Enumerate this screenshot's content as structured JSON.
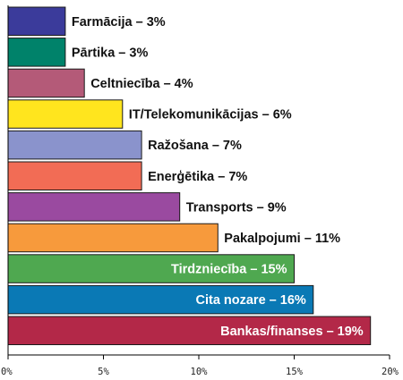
{
  "chart_data": {
    "type": "bar",
    "orientation": "horizontal",
    "xlim": [
      0,
      20
    ],
    "grid": false,
    "ticks": [
      {
        "value": 0,
        "label": "0%"
      },
      {
        "value": 5,
        "label": "5%"
      },
      {
        "value": 10,
        "label": "10%"
      },
      {
        "value": 15,
        "label": "15%"
      },
      {
        "value": 20,
        "label": "20%"
      }
    ],
    "bars": [
      {
        "label": "Farmācija – 3%",
        "value": 3,
        "color": "#3b3b9b",
        "label_position": "outside"
      },
      {
        "label": "Pārtika – 3%",
        "value": 3,
        "color": "#00826a",
        "label_position": "outside"
      },
      {
        "label": "Celtniecība – 4%",
        "value": 4,
        "color": "#b45a78",
        "label_position": "outside"
      },
      {
        "label": "IT/Telekomunikācijas – 6%",
        "value": 6,
        "color": "#ffe51e",
        "label_position": "outside"
      },
      {
        "label": "Ražošana – 7%",
        "value": 7,
        "color": "#8a93cc",
        "label_position": "outside"
      },
      {
        "label": "Enerģētika – 7%",
        "value": 7,
        "color": "#f26c55",
        "label_position": "outside"
      },
      {
        "label": "Transports – 9%",
        "value": 9,
        "color": "#9a4aa0",
        "label_position": "outside"
      },
      {
        "label": "Pakalpojumi – 11%",
        "value": 11,
        "color": "#f79a3c",
        "label_position": "outside"
      },
      {
        "label": "Tirdzniecība – 15%",
        "value": 15,
        "color": "#4fa850",
        "label_position": "inside"
      },
      {
        "label": "Cita nozare – 16%",
        "value": 16,
        "color": "#0a79b5",
        "label_position": "inside"
      },
      {
        "label": "Bankas/finanses – 19%",
        "value": 19,
        "color": "#b32848",
        "label_position": "inside"
      }
    ]
  }
}
